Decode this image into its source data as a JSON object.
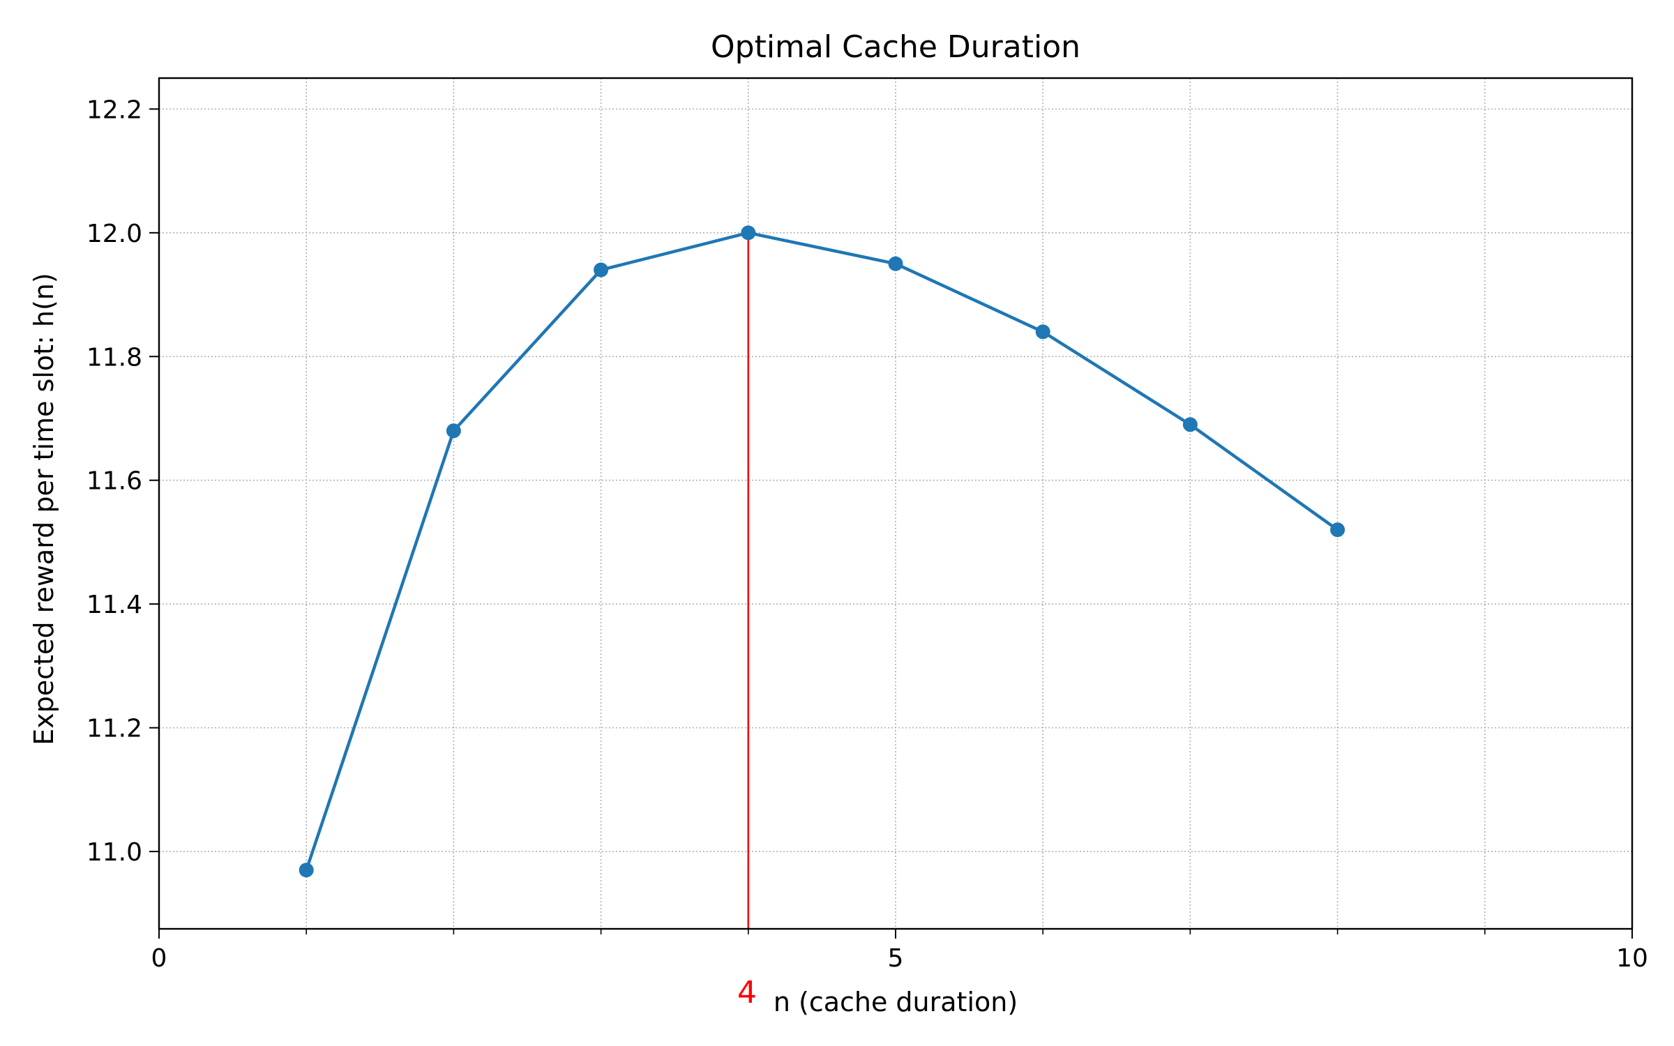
{
  "chart_data": {
    "type": "line",
    "title": "Optimal Cache Duration",
    "xlabel": "n (cache duration)",
    "ylabel": "Expected reward per time slot: h(n)",
    "xlim": [
      0,
      10
    ],
    "ylim": [
      10.875,
      12.25
    ],
    "x_ticks": [
      0,
      5,
      10
    ],
    "x_tick_labels": [
      "0",
      "5",
      "10"
    ],
    "x_minor_ticks": [
      1,
      2,
      3,
      4,
      6,
      7,
      8,
      9
    ],
    "y_ticks": [
      11.0,
      11.2,
      11.4,
      11.6,
      11.8,
      12.0,
      12.2
    ],
    "y_tick_labels": [
      "11.0",
      "11.2",
      "11.4",
      "11.6",
      "11.8",
      "12.0",
      "12.2"
    ],
    "grid": true,
    "grid_style": "dotted",
    "series": [
      {
        "x": [
          1,
          2,
          3,
          4,
          5,
          6,
          7,
          8
        ],
        "values": [
          10.97,
          11.68,
          11.94,
          12.0,
          11.95,
          11.84,
          11.69,
          11.52
        ],
        "color": "#1f77b4",
        "marker": "circle"
      }
    ],
    "annotations": [
      {
        "type": "vertical-line",
        "x": 4,
        "y_top": 12.0,
        "color": "#ff0000",
        "label": "4"
      }
    ]
  }
}
